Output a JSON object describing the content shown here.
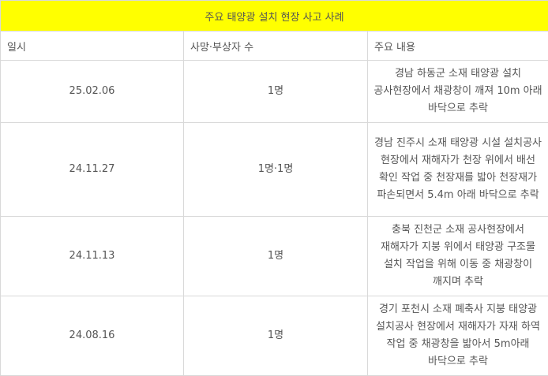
{
  "title": "주요 태양광 설치 현장 사고 사례",
  "headers": [
    "일시",
    "사망·부상자 수",
    "주요 내용"
  ],
  "rows": [
    {
      "date": "25.02.06",
      "casualties": "1명",
      "description": "경남 하동군 소재 태양광 설치 공사현장에서 채광창이 깨져 10m 아래 바닥으로 추락"
    },
    {
      "date": "24.11.27",
      "casualties": "1명·1명",
      "description": "경남 진주시 소재 태양광 시설 설치공사 현장에서 재해자가 천장 위에서 배선 확인 작업 중 천장재를 밟아 천장재가 파손되면서 5.4m 아래 바닥으로 추락"
    },
    {
      "date": "24.11.13",
      "casualties": "1명",
      "description": "충북 진천군 소재 공사현장에서 재해자가 지붕 위에서 태양광 구조물 설치 작업을 위해 이동 중 채광창이 깨지며 추락"
    },
    {
      "date": "24.08.16",
      "casualties": "1명",
      "description": "경기 포천시 소재 폐축사 지붕 태양광 설치공사 현장에서 재해자가 자재 하역 작업 중 채광창을 밟아서 5m아래 바닥으로 추락"
    }
  ],
  "colors": {
    "title_bg": "#ffff00",
    "border": "#d9d9d9",
    "text": "#555555"
  }
}
